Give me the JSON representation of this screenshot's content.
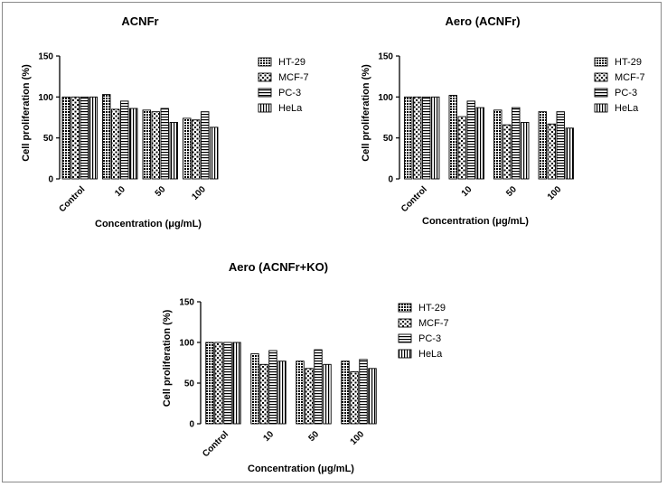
{
  "chart_data": [
    {
      "type": "bar",
      "title": "ACNFr",
      "xlabel": "Concentration (μg/mL)",
      "ylabel": "Cell proliferation (%)",
      "ylim": [
        0,
        150
      ],
      "yticks": [
        "0",
        "50",
        "100",
        "150"
      ],
      "categories": [
        "Control",
        "10",
        "50",
        "100"
      ],
      "legend": "right",
      "series": [
        {
          "name": "HT-29",
          "values": [
            100,
            103,
            84,
            74
          ]
        },
        {
          "name": "MCF-7",
          "values": [
            100,
            85,
            82,
            72
          ]
        },
        {
          "name": "PC-3",
          "values": [
            100,
            95,
            86,
            82
          ]
        },
        {
          "name": "HeLa",
          "values": [
            100,
            86,
            69,
            63
          ]
        }
      ]
    },
    {
      "type": "bar",
      "title": "Aero (ACNFr)",
      "xlabel": "Concentration (μg/mL)",
      "ylabel": "Cell proliferation (%)",
      "ylim": [
        0,
        150
      ],
      "yticks": [
        "0",
        "50",
        "100",
        "150"
      ],
      "categories": [
        "Control",
        "10",
        "50",
        "100"
      ],
      "legend": "right",
      "series": [
        {
          "name": "HT-29",
          "values": [
            100,
            102,
            84,
            82
          ]
        },
        {
          "name": "MCF-7",
          "values": [
            100,
            76,
            66,
            67
          ]
        },
        {
          "name": "PC-3",
          "values": [
            100,
            95,
            87,
            82
          ]
        },
        {
          "name": "HeLa",
          "values": [
            100,
            87,
            69,
            62
          ]
        }
      ]
    },
    {
      "type": "bar",
      "title": "Aero (ACNFr+KO)",
      "xlabel": "Concentration (μg/mL)",
      "ylabel": "Cell proliferation (%)",
      "ylim": [
        0,
        150
      ],
      "yticks": [
        "0",
        "50",
        "100",
        "150"
      ],
      "categories": [
        "Control",
        "10",
        "50",
        "100"
      ],
      "legend": "right",
      "series": [
        {
          "name": "HT-29",
          "values": [
            100,
            86,
            77,
            77
          ]
        },
        {
          "name": "MCF-7",
          "values": [
            100,
            73,
            68,
            64
          ]
        },
        {
          "name": "PC-3",
          "values": [
            100,
            90,
            91,
            79
          ]
        },
        {
          "name": "HeLa",
          "values": [
            100,
            77,
            73,
            68
          ]
        }
      ]
    }
  ]
}
